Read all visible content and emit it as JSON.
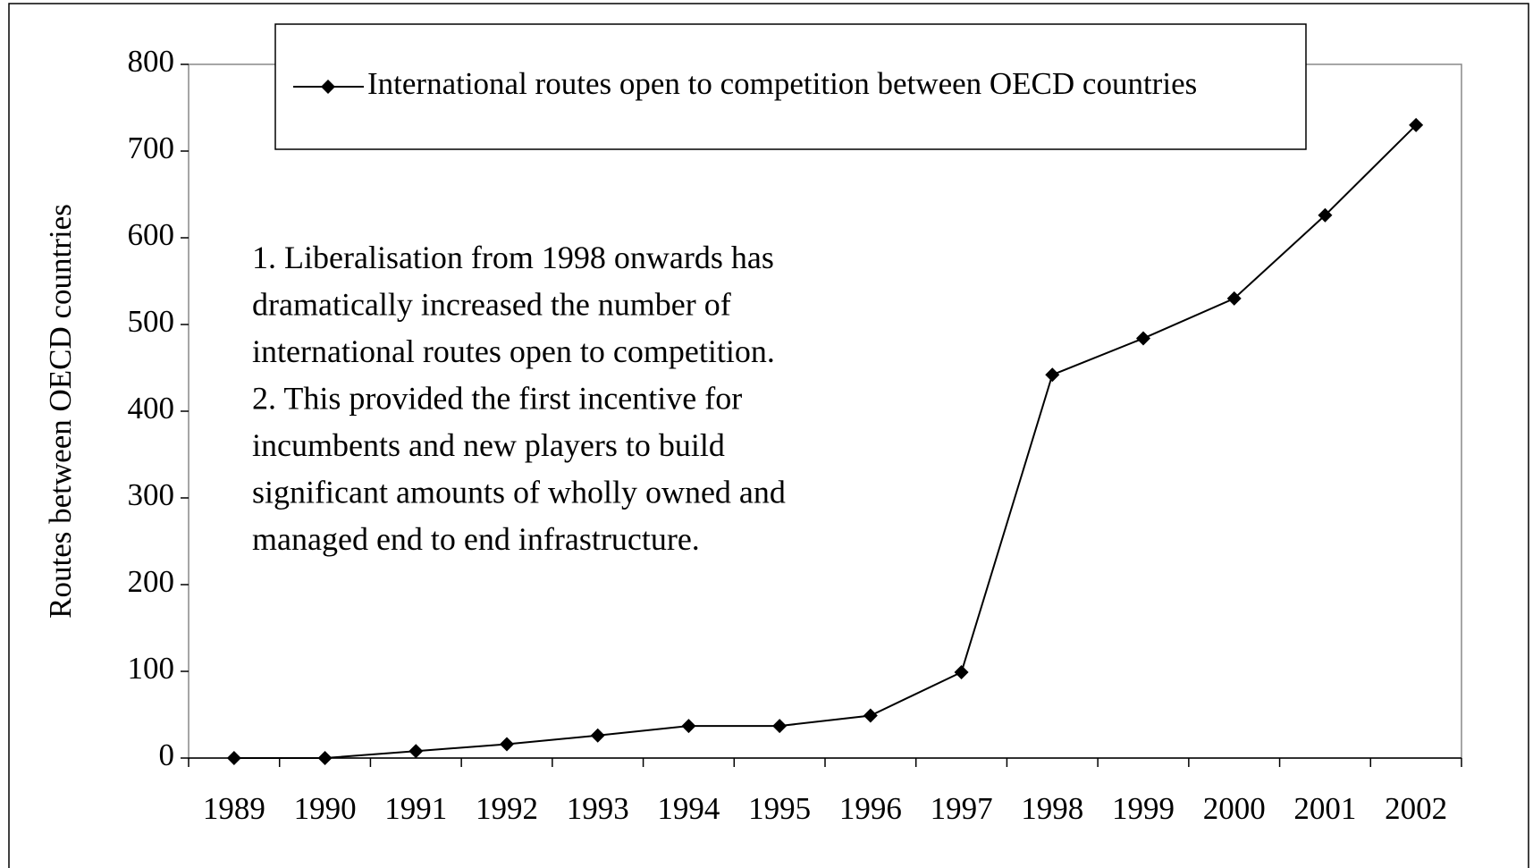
{
  "chart_data": {
    "type": "line",
    "ylabel": "Routes between OECD countries",
    "categories": [
      "1989",
      "1990",
      "1991",
      "1992",
      "1993",
      "1994",
      "1995",
      "1996",
      "1997",
      "1998",
      "1999",
      "2000",
      "2001",
      "2002"
    ],
    "series": [
      {
        "name": "International routes open to competition between OECD countries",
        "color": "#000000",
        "values": [
          0,
          0,
          8,
          16,
          26,
          37,
          37,
          49,
          99,
          442,
          484,
          530,
          626,
          730
        ]
      }
    ],
    "ylim": [
      0,
      800
    ],
    "yticks": [
      0,
      100,
      200,
      300,
      400,
      500,
      600,
      700,
      800
    ],
    "annotation": [
      "1. Liberalisation from 1998 onwards has",
      "dramatically increased the number of",
      "international routes open to competition.",
      "2. This provided the first incentive for",
      "incumbents and new players to build",
      "significant amounts of wholly owned and",
      "managed end to end infrastructure."
    ]
  }
}
